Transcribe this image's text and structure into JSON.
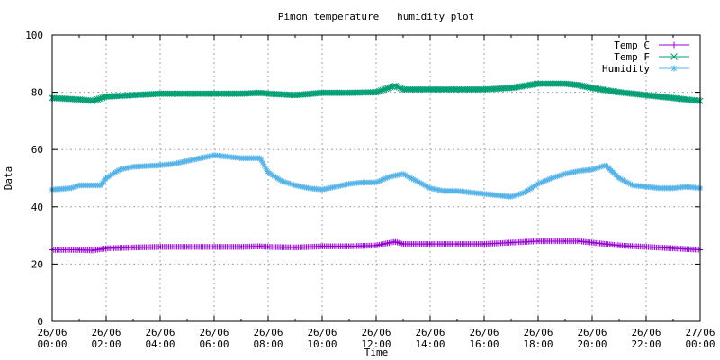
{
  "chart_data": {
    "type": "line",
    "title": "Pimon temperature   humidity plot",
    "xlabel": "Time",
    "ylabel": "Data",
    "ylim": [
      0,
      100
    ],
    "yticks": [
      0,
      20,
      40,
      60,
      80,
      100
    ],
    "xlim_hours": [
      0,
      24
    ],
    "xticks": [
      {
        "line1": "26/06",
        "line2": "00:00",
        "hour": 0
      },
      {
        "line1": "26/06",
        "line2": "02:00",
        "hour": 2
      },
      {
        "line1": "26/06",
        "line2": "04:00",
        "hour": 4
      },
      {
        "line1": "26/06",
        "line2": "06:00",
        "hour": 6
      },
      {
        "line1": "26/06",
        "line2": "08:00",
        "hour": 8
      },
      {
        "line1": "26/06",
        "line2": "10:00",
        "hour": 10
      },
      {
        "line1": "26/06",
        "line2": "12:00",
        "hour": 12
      },
      {
        "line1": "26/06",
        "line2": "14:00",
        "hour": 14
      },
      {
        "line1": "26/06",
        "line2": "16:00",
        "hour": 16
      },
      {
        "line1": "26/06",
        "line2": "18:00",
        "hour": 18
      },
      {
        "line1": "26/06",
        "line2": "20:00",
        "hour": 20
      },
      {
        "line1": "26/06",
        "line2": "22:00",
        "hour": 22
      },
      {
        "line1": "27/06",
        "line2": "00:00",
        "hour": 24
      }
    ],
    "grid": true,
    "legend_position": "top-right",
    "series": [
      {
        "name": "Temp C",
        "color": "#9400d3",
        "marker": "plus",
        "points": [
          [
            0,
            25.0
          ],
          [
            1,
            25.0
          ],
          [
            1.5,
            24.8
          ],
          [
            2,
            25.5
          ],
          [
            3,
            25.8
          ],
          [
            4,
            26.0
          ],
          [
            5,
            26.0
          ],
          [
            6,
            26.0
          ],
          [
            7,
            26.0
          ],
          [
            7.7,
            26.2
          ],
          [
            8,
            26.0
          ],
          [
            9,
            25.8
          ],
          [
            10,
            26.2
          ],
          [
            11,
            26.2
          ],
          [
            12,
            26.5
          ],
          [
            12.7,
            27.8
          ],
          [
            13,
            27.0
          ],
          [
            14,
            27.0
          ],
          [
            15,
            27.0
          ],
          [
            16,
            27.0
          ],
          [
            17,
            27.5
          ],
          [
            18,
            28.0
          ],
          [
            19,
            28.0
          ],
          [
            19.5,
            28.0
          ],
          [
            20,
            27.5
          ],
          [
            21,
            26.5
          ],
          [
            22,
            26.0
          ],
          [
            23,
            25.5
          ],
          [
            24,
            25.0
          ]
        ]
      },
      {
        "name": "Temp F",
        "color": "#009e73",
        "marker": "cross",
        "points": [
          [
            0,
            78.0
          ],
          [
            1,
            77.5
          ],
          [
            1.5,
            77.0
          ],
          [
            2,
            78.5
          ],
          [
            3,
            79.0
          ],
          [
            4,
            79.5
          ],
          [
            5,
            79.5
          ],
          [
            6,
            79.5
          ],
          [
            7,
            79.5
          ],
          [
            7.7,
            79.8
          ],
          [
            8,
            79.5
          ],
          [
            9,
            79.0
          ],
          [
            10,
            79.8
          ],
          [
            11,
            79.8
          ],
          [
            12,
            80.0
          ],
          [
            12.7,
            82.3
          ],
          [
            13,
            81.0
          ],
          [
            14,
            81.0
          ],
          [
            15,
            81.0
          ],
          [
            16,
            81.0
          ],
          [
            17,
            81.5
          ],
          [
            18,
            83.0
          ],
          [
            19,
            83.0
          ],
          [
            19.5,
            82.5
          ],
          [
            20,
            81.5
          ],
          [
            21,
            80.0
          ],
          [
            22,
            79.0
          ],
          [
            23,
            78.0
          ],
          [
            24,
            77.0
          ]
        ]
      },
      {
        "name": "Humidity",
        "color": "#56b4e9",
        "marker": "star",
        "points": [
          [
            0,
            46.0
          ],
          [
            0.7,
            46.5
          ],
          [
            1,
            47.5
          ],
          [
            1.8,
            47.5
          ],
          [
            2,
            50.0
          ],
          [
            2.5,
            53.0
          ],
          [
            3,
            54.0
          ],
          [
            4,
            54.5
          ],
          [
            4.5,
            55.0
          ],
          [
            5,
            56.0
          ],
          [
            5.5,
            57.0
          ],
          [
            6,
            58.0
          ],
          [
            6.5,
            57.5
          ],
          [
            7,
            57.0
          ],
          [
            7.7,
            57.0
          ],
          [
            8,
            52.0
          ],
          [
            8.5,
            49.0
          ],
          [
            9,
            47.5
          ],
          [
            9.5,
            46.5
          ],
          [
            10,
            46.0
          ],
          [
            10.5,
            47.0
          ],
          [
            11,
            48.0
          ],
          [
            11.5,
            48.5
          ],
          [
            12,
            48.5
          ],
          [
            12.5,
            50.5
          ],
          [
            13,
            51.5
          ],
          [
            13.5,
            49.0
          ],
          [
            14,
            46.5
          ],
          [
            14.5,
            45.5
          ],
          [
            15,
            45.5
          ],
          [
            15.5,
            45.0
          ],
          [
            16,
            44.5
          ],
          [
            16.5,
            44.0
          ],
          [
            17,
            43.5
          ],
          [
            17.5,
            45.0
          ],
          [
            18,
            48.0
          ],
          [
            18.5,
            50.0
          ],
          [
            19,
            51.5
          ],
          [
            19.5,
            52.5
          ],
          [
            20,
            53.0
          ],
          [
            20.5,
            54.5
          ],
          [
            21,
            50.0
          ],
          [
            21.5,
            47.5
          ],
          [
            22,
            47.0
          ],
          [
            22.5,
            46.5
          ],
          [
            23,
            46.5
          ],
          [
            23.5,
            47.0
          ],
          [
            24,
            46.5
          ]
        ]
      }
    ]
  }
}
